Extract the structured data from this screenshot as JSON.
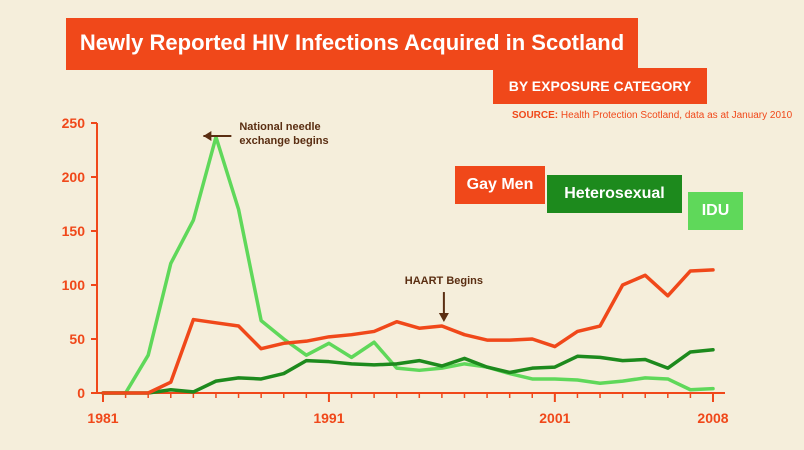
{
  "header": {
    "title": "Newly Reported HIV Infections Acquired in Scotland",
    "subtitle": "BY EXPOSURE CATEGORY",
    "source_label": "SOURCE:",
    "source_text": "Health Protection Scotland, data as at January 2010"
  },
  "colors": {
    "accent": "#f0481a",
    "gay_men": "#f0481a",
    "heterosexual": "#1d8a1d",
    "idu": "#5fd85a",
    "background": "#f5eedb",
    "annotation": "#5a2e12"
  },
  "chart_data": {
    "type": "line",
    "title": "Newly Reported HIV Infections Acquired in Scotland",
    "subtitle": "BY EXPOSURE CATEGORY",
    "x": [
      1981,
      1982,
      1983,
      1984,
      1985,
      1986,
      1987,
      1988,
      1989,
      1990,
      1991,
      1992,
      1993,
      1994,
      1995,
      1996,
      1997,
      1998,
      1999,
      2000,
      2001,
      2002,
      2003,
      2004,
      2005,
      2006,
      2007,
      2008
    ],
    "x_tick_labels": [
      "1981",
      "1991",
      "2001",
      "2008"
    ],
    "x_ticks": [
      1981,
      1991,
      2001,
      2008
    ],
    "ylim": [
      0,
      250
    ],
    "y_ticks": [
      0,
      50,
      100,
      150,
      200,
      250
    ],
    "grid": false,
    "legend_placement": "right",
    "series": [
      {
        "name": "Gay Men",
        "color": "#f0481a",
        "values": [
          0,
          0,
          0,
          10,
          68,
          65,
          62,
          41,
          46,
          48,
          52,
          54,
          57,
          66,
          60,
          62,
          54,
          49,
          49,
          50,
          43,
          57,
          62,
          100,
          109,
          90,
          113,
          114
        ]
      },
      {
        "name": "Heterosexual",
        "color": "#1d8a1d",
        "values": [
          0,
          0,
          0,
          3,
          1,
          11,
          14,
          13,
          18,
          30,
          29,
          27,
          26,
          27,
          30,
          25,
          32,
          24,
          19,
          23,
          24,
          34,
          33,
          30,
          31,
          23,
          38,
          40
        ]
      },
      {
        "name": "IDU",
        "color": "#5fd85a",
        "values": [
          0,
          0,
          35,
          120,
          160,
          237,
          170,
          67,
          50,
          35,
          46,
          33,
          47,
          23,
          21,
          23,
          27,
          24,
          18,
          13,
          13,
          12,
          9,
          11,
          14,
          13,
          3,
          4
        ]
      }
    ],
    "annotations": [
      {
        "text_lines": [
          "National needle",
          "exchange begins"
        ],
        "x": 1985,
        "y": 237,
        "arrow": "left"
      },
      {
        "text": "HAART Begins",
        "x": 1996,
        "y": 62,
        "arrow": "down"
      }
    ]
  }
}
